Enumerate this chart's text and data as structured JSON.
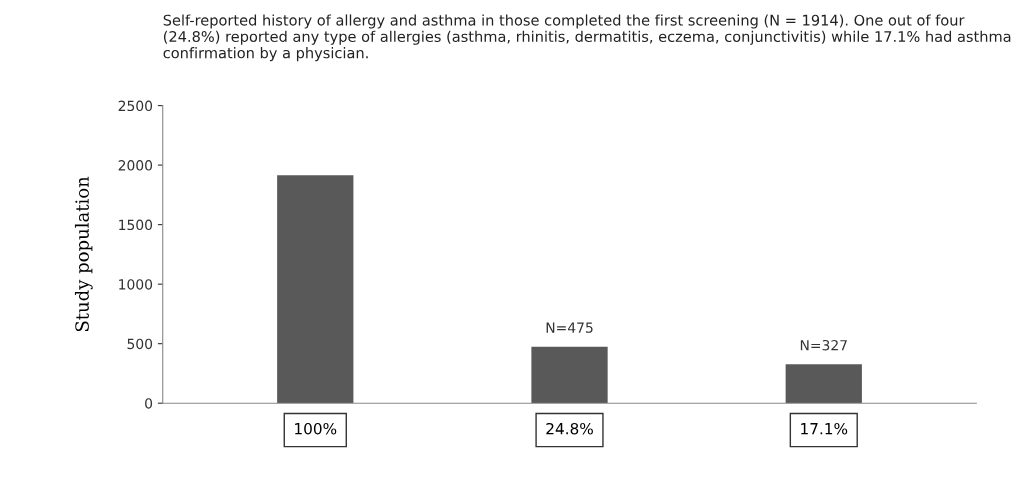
{
  "chart_data": {
    "type": "bar",
    "title": "Self-reported history of allergy and asthma in those completed the first screening (N = 1914). One out of four (24.8%) reported any type of allergies (asthma, rhinitis, dermatitis, eczema, conjunctivitis) while 17.1% had asthma confirmation by a physician.",
    "ylabel": "Study population",
    "categories": [
      "100%",
      "24.8%",
      "17.1%"
    ],
    "values": [
      1914,
      475,
      327
    ],
    "value_labels": [
      null,
      "N=475",
      "N=327"
    ],
    "color": "#595959",
    "ylim": [
      0,
      2500
    ],
    "yticks": [
      0,
      500,
      1000,
      1500,
      2000,
      2500
    ],
    "grid": false,
    "legend": false
  }
}
